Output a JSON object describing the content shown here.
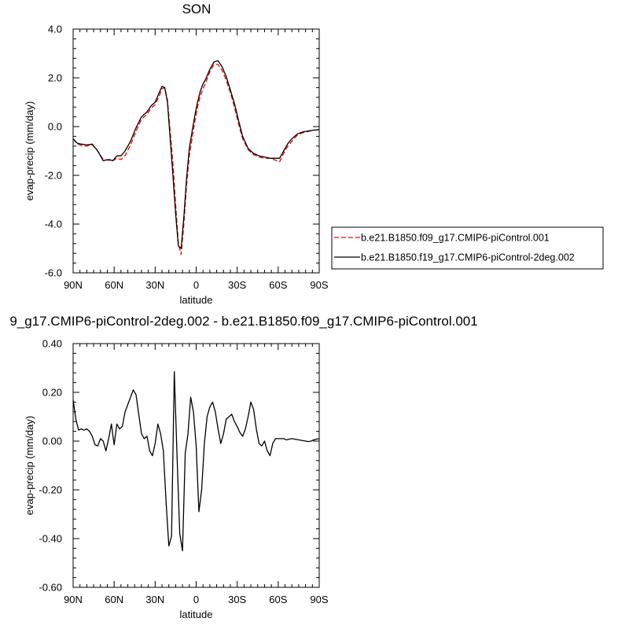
{
  "chart_data": [
    {
      "type": "line",
      "title": "SON",
      "xlabel": "latitude",
      "ylabel": "evap-precip (mm/day)",
      "xlim": [
        90,
        -90
      ],
      "ylim": [
        -6.0,
        4.0
      ],
      "xtick_values": [
        90,
        60,
        30,
        0,
        -30,
        -60,
        -90
      ],
      "xtick_labels": [
        "90N",
        "60N",
        "30N",
        "0",
        "30S",
        "60S",
        "90S"
      ],
      "ytick_values": [
        -6,
        -4,
        -2,
        0,
        2,
        4
      ],
      "ytick_labels": [
        "-6.0",
        "-4.0",
        "-2.0",
        "0.0",
        "2.0",
        "4.0"
      ],
      "grid": false,
      "legend": "right",
      "series": [
        {
          "name": "b.e21.B1850.f09_g17.CMIP6-piControl.001",
          "color": "#ff0000",
          "dash": "dashed",
          "x": [
            90,
            87,
            84,
            80,
            76,
            72,
            68,
            64,
            61,
            58,
            55,
            52,
            48,
            44,
            40,
            36,
            33,
            30,
            27,
            25,
            23,
            21,
            19,
            17,
            15,
            13,
            11,
            9,
            7,
            5,
            3,
            1,
            -1,
            -3,
            -5,
            -7,
            -10,
            -13,
            -16,
            -19,
            -22,
            -25,
            -28,
            -31,
            -34,
            -38,
            -42,
            -46,
            -50,
            -54,
            -58,
            -61,
            -64,
            -67,
            -70,
            -74,
            -78,
            -82,
            -86,
            -90
          ],
          "y": [
            -0.5,
            -0.7,
            -0.78,
            -0.8,
            -0.75,
            -1.0,
            -1.35,
            -1.38,
            -1.4,
            -1.3,
            -1.35,
            -1.2,
            -0.75,
            -0.2,
            0.3,
            0.5,
            0.75,
            0.9,
            1.25,
            1.55,
            1.6,
            1.1,
            -0.2,
            -1.5,
            -3.2,
            -4.8,
            -5.25,
            -4.0,
            -2.4,
            -1.2,
            -0.5,
            0.2,
            0.8,
            1.25,
            1.55,
            1.8,
            2.25,
            2.55,
            2.55,
            2.3,
            1.9,
            1.4,
            0.8,
            0.1,
            -0.5,
            -0.95,
            -1.15,
            -1.25,
            -1.3,
            -1.3,
            -1.38,
            -1.45,
            -1.1,
            -0.8,
            -0.6,
            -0.35,
            -0.25,
            -0.2,
            -0.15,
            -0.12
          ]
        },
        {
          "name": "b.e21.B1850.f19_g17.CMIP6-piControl-2deg.002",
          "color": "#000000",
          "dash": "solid",
          "x": [
            90,
            87,
            84,
            80,
            76,
            72,
            68,
            64,
            61,
            58,
            55,
            52,
            48,
            44,
            40,
            36,
            33,
            30,
            27,
            25,
            23,
            21,
            19,
            17,
            15,
            13,
            11,
            9,
            7,
            5,
            3,
            1,
            -1,
            -3,
            -5,
            -7,
            -10,
            -13,
            -16,
            -19,
            -22,
            -25,
            -28,
            -31,
            -34,
            -38,
            -42,
            -46,
            -50,
            -54,
            -58,
            -61,
            -64,
            -67,
            -70,
            -74,
            -78,
            -82,
            -86,
            -90
          ],
          "y": [
            -0.5,
            -0.68,
            -0.72,
            -0.75,
            -0.72,
            -1.0,
            -1.4,
            -1.35,
            -1.4,
            -1.2,
            -1.2,
            -1.0,
            -0.6,
            -0.05,
            0.4,
            0.6,
            0.85,
            1.0,
            1.4,
            1.65,
            1.6,
            1.0,
            -0.5,
            -2.0,
            -3.6,
            -4.9,
            -5.0,
            -3.7,
            -2.1,
            -0.9,
            -0.2,
            0.45,
            1.0,
            1.45,
            1.75,
            1.95,
            2.35,
            2.65,
            2.7,
            2.45,
            2.05,
            1.5,
            0.95,
            0.25,
            -0.4,
            -0.9,
            -1.1,
            -1.2,
            -1.25,
            -1.3,
            -1.3,
            -1.3,
            -1.0,
            -0.7,
            -0.5,
            -0.3,
            -0.22,
            -0.18,
            -0.15,
            -0.12
          ]
        }
      ]
    },
    {
      "type": "line",
      "title": "9_g17.CMIP6-piControl-2deg.002 - b.e21.B1850.f09_g17.CMIP6-piControl.001",
      "xlabel": "latitude",
      "ylabel": "evap-precip (mm/day)",
      "xlim": [
        90,
        -90
      ],
      "ylim": [
        -0.6,
        0.4
      ],
      "xtick_values": [
        90,
        60,
        30,
        0,
        -30,
        -60,
        -90
      ],
      "xtick_labels": [
        "90N",
        "60N",
        "30N",
        "0",
        "30S",
        "60S",
        "90S"
      ],
      "ytick_values": [
        -0.6,
        -0.4,
        -0.2,
        0.0,
        0.2,
        0.4
      ],
      "ytick_labels": [
        "-0.60",
        "-0.40",
        "-0.20",
        "0.00",
        "0.20",
        "0.40"
      ],
      "grid": false,
      "series": [
        {
          "color": "#000000",
          "dash": "solid",
          "x": [
            90,
            88,
            86,
            84,
            82,
            80,
            78,
            76,
            74,
            72,
            70,
            68,
            66,
            64,
            62,
            60,
            58,
            56,
            54,
            52,
            50,
            48,
            46,
            44,
            42,
            40,
            38,
            36,
            34,
            32,
            30,
            28,
            26,
            24,
            22,
            20,
            18,
            16,
            14,
            12,
            10,
            8,
            6,
            4,
            2,
            0,
            -2,
            -4,
            -6,
            -8,
            -10,
            -12,
            -14,
            -16,
            -18,
            -20,
            -22,
            -24,
            -26,
            -28,
            -30,
            -32,
            -34,
            -36,
            -38,
            -40,
            -42,
            -44,
            -46,
            -48,
            -50,
            -52,
            -54,
            -56,
            -58,
            -60,
            -62,
            -64,
            -66,
            -68,
            -70,
            -72,
            -74,
            -76,
            -78,
            -80,
            -82,
            -84,
            -86,
            -88,
            -90
          ],
          "y": [
            0.17,
            0.09,
            0.045,
            0.05,
            0.045,
            0.05,
            0.04,
            0.02,
            -0.015,
            -0.02,
            0.01,
            0.0,
            -0.04,
            0.01,
            0.07,
            -0.015,
            0.07,
            0.05,
            0.06,
            0.12,
            0.15,
            0.18,
            0.21,
            0.19,
            0.11,
            0.03,
            0.01,
            0.02,
            -0.04,
            -0.06,
            -0.01,
            0.07,
            0.03,
            -0.04,
            -0.25,
            -0.43,
            -0.39,
            0.285,
            -0.06,
            -0.38,
            -0.45,
            -0.05,
            0.03,
            0.18,
            0.12,
            -0.02,
            -0.29,
            -0.2,
            -0.01,
            0.1,
            0.14,
            0.16,
            0.12,
            0.05,
            -0.01,
            0.03,
            0.09,
            0.1,
            0.11,
            0.08,
            0.06,
            0.035,
            0.02,
            0.05,
            0.1,
            0.16,
            0.13,
            0.05,
            -0.01,
            -0.02,
            0.0,
            -0.04,
            -0.06,
            -0.01,
            0.01,
            0.01,
            0.01,
            0.01,
            0.005,
            0.008,
            0.01,
            0.008,
            0.006,
            0.004,
            0.002,
            0.0,
            -0.002,
            0.0,
            0.005,
            0.008,
            0.01
          ]
        }
      ]
    }
  ]
}
